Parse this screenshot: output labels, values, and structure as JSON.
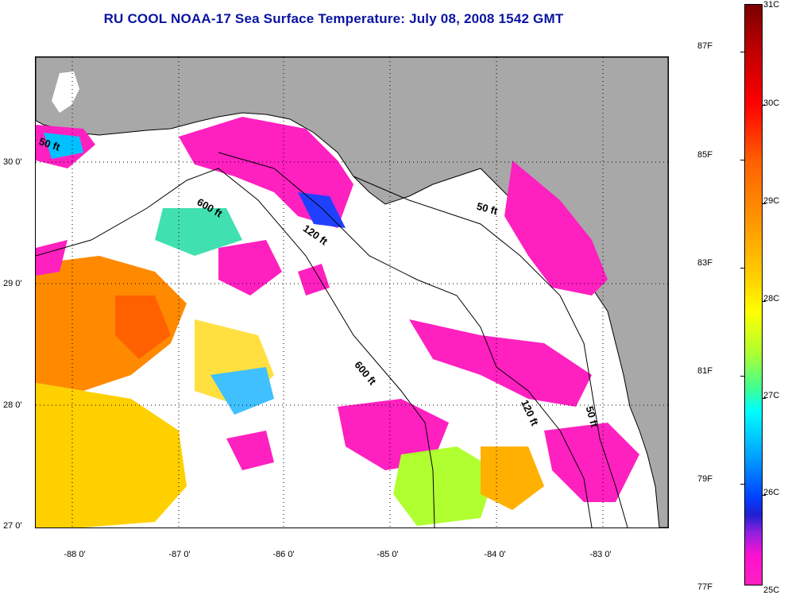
{
  "title": "RU COOL  NOAA-17  Sea Surface Temperature:  July 08, 2008 1542 GMT",
  "lat_labels": [
    "30 0'",
    "29 0'",
    "28 0'",
    "27 0'"
  ],
  "lon_labels": [
    "-88 0'",
    "-87 0'",
    "-86 0'",
    "-85 0'",
    "-84 0'",
    "-83 0'"
  ],
  "isobath_labels": [
    "50 ft",
    "600 ft",
    "120 ft",
    "50 ft",
    "600 ft",
    "120 ft",
    "50 ft"
  ],
  "colorbar": {
    "fahrenheit": [
      "87F",
      "85F",
      "83F",
      "81F",
      "79F",
      "77F"
    ],
    "celsius": [
      "31C",
      "30C",
      "29C",
      "28C",
      "27C",
      "26C",
      "25C"
    ]
  },
  "colors": {
    "title": "#0a14a0",
    "land": "#a8a8a8",
    "cloud": "#ffffff",
    "cold": "#ff20c0",
    "warm": "#ff8a00"
  }
}
